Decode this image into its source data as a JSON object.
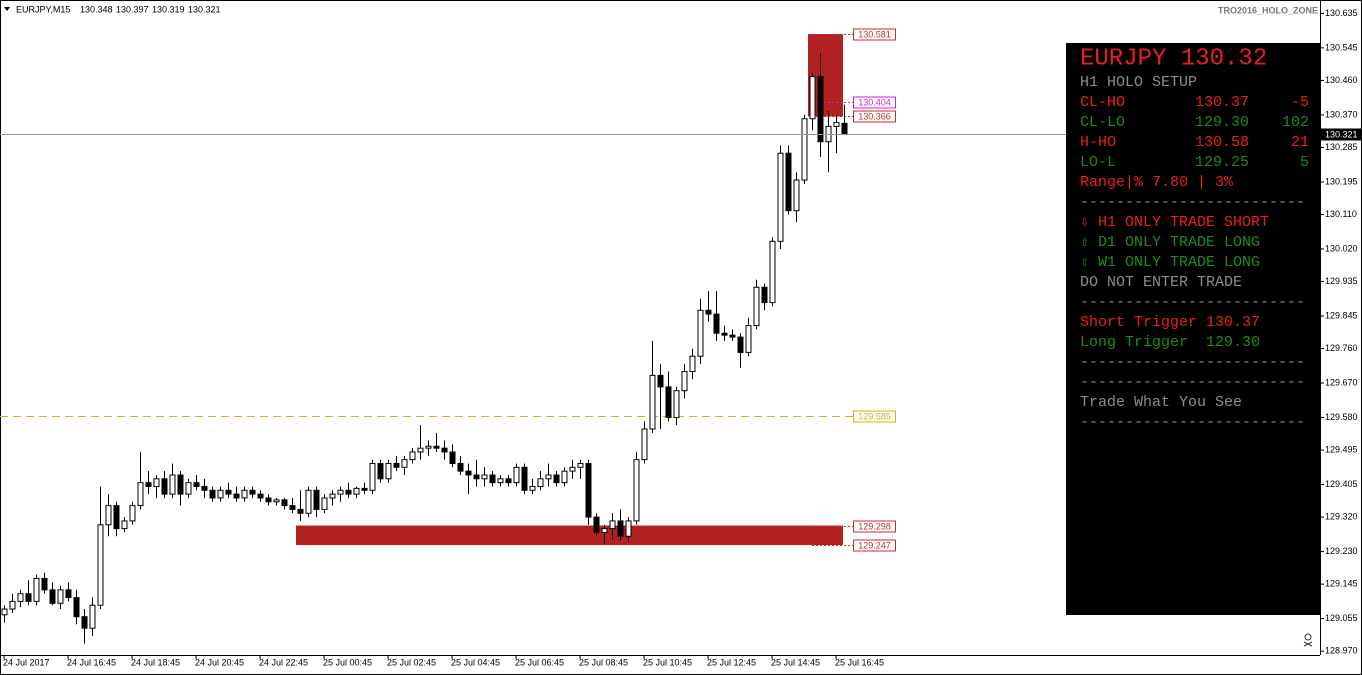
{
  "chart_data": {
    "type": "candlestick",
    "symbol": "EURJPY,M15",
    "indicator": "TRO2016_HOLO_ZONE",
    "categories": [
      "24 Jul 2017",
      null,
      null,
      null,
      null,
      null,
      null,
      null,
      "24 Jul 16:45",
      null,
      null,
      null,
      null,
      null,
      null,
      null,
      "24 Jul 18:45",
      null,
      null,
      null,
      null,
      null,
      null,
      null,
      "24 Jul 20:45",
      null,
      null,
      null,
      null,
      null,
      null,
      null,
      "24 Jul 22:45",
      null,
      null,
      null,
      null,
      null,
      null,
      null,
      "25 Jul 00:45",
      null,
      null,
      null,
      null,
      null,
      null,
      null,
      "25 Jul 02:45",
      null,
      null,
      null,
      null,
      null,
      null,
      null,
      "25 Jul 04:45",
      null,
      null,
      null,
      null,
      null,
      null,
      null,
      "25 Jul 06:45",
      null,
      null,
      null,
      null,
      null,
      null,
      null,
      "25 Jul 08:45",
      null,
      null,
      null,
      null,
      null,
      null,
      null,
      "25 Jul 10:45",
      null,
      null,
      null,
      null,
      null,
      null,
      null,
      "25 Jul 12:45",
      null,
      null,
      null,
      null,
      null,
      null,
      null,
      "25 Jul 14:45",
      null,
      null,
      null,
      null,
      null,
      null,
      null,
      "25 Jul 16:45",
      null
    ],
    "open": [
      129.065,
      129.08,
      129.1,
      129.12,
      129.1,
      129.16,
      129.13,
      129.095,
      129.13,
      129.11,
      129.06,
      129.03,
      129.09,
      129.3,
      129.35,
      129.29,
      129.31,
      129.35,
      129.41,
      129.4,
      129.42,
      129.38,
      129.43,
      129.38,
      129.41,
      129.4,
      129.39,
      129.37,
      129.39,
      129.38,
      129.37,
      129.39,
      129.38,
      129.37,
      129.36,
      129.365,
      129.35,
      129.34,
      129.33,
      129.39,
      129.34,
      129.37,
      129.38,
      129.39,
      129.38,
      129.395,
      129.39,
      129.46,
      129.42,
      129.46,
      129.45,
      129.47,
      129.49,
      129.5,
      129.505,
      129.5,
      129.49,
      129.46,
      129.44,
      129.43,
      129.42,
      129.43,
      129.41,
      129.42,
      129.41,
      129.45,
      129.39,
      129.4,
      129.42,
      129.43,
      129.41,
      129.44,
      129.45,
      129.46,
      129.32,
      129.28,
      129.29,
      129.31,
      129.27,
      129.31,
      129.47,
      129.55,
      129.69,
      129.66,
      129.58,
      129.65,
      129.7,
      129.74,
      129.86,
      129.85,
      129.8,
      129.795,
      129.79,
      129.75,
      129.82,
      129.92,
      129.88,
      130.04,
      130.27,
      130.12,
      130.2,
      130.36,
      130.47,
      130.3,
      130.34,
      130.348
    ],
    "high": [
      129.09,
      129.12,
      129.13,
      129.155,
      129.17,
      129.175,
      129.15,
      129.14,
      129.15,
      129.13,
      129.08,
      129.11,
      129.4,
      129.38,
      129.36,
      129.32,
      129.36,
      129.49,
      129.44,
      129.43,
      129.44,
      129.46,
      129.44,
      129.42,
      129.43,
      129.42,
      129.4,
      129.4,
      129.41,
      129.4,
      129.4,
      129.4,
      129.39,
      129.38,
      129.37,
      129.37,
      129.37,
      129.39,
      129.4,
      129.4,
      129.38,
      129.39,
      129.4,
      129.41,
      129.4,
      129.41,
      129.47,
      129.47,
      129.47,
      129.48,
      129.48,
      129.5,
      129.56,
      129.52,
      129.54,
      129.52,
      129.51,
      129.48,
      129.46,
      129.47,
      129.45,
      129.44,
      129.43,
      129.43,
      129.46,
      129.46,
      129.42,
      129.44,
      129.46,
      129.44,
      129.45,
      129.47,
      129.47,
      129.47,
      129.33,
      129.3,
      129.33,
      129.34,
      129.32,
      129.49,
      129.57,
      129.78,
      129.72,
      129.7,
      129.66,
      129.72,
      129.76,
      129.89,
      129.91,
      129.91,
      129.82,
      129.81,
      129.8,
      129.84,
      129.94,
      129.93,
      130.05,
      130.29,
      130.29,
      130.22,
      130.37,
      130.48,
      130.53,
      130.38,
      130.37,
      130.397
    ],
    "low": [
      129.045,
      129.07,
      129.085,
      129.09,
      129.09,
      129.12,
      129.09,
      129.08,
      129.1,
      129.04,
      128.99,
      129.01,
      129.08,
      129.27,
      129.27,
      129.28,
      129.3,
      129.34,
      129.38,
      129.37,
      129.37,
      129.37,
      129.35,
      129.37,
      129.39,
      129.37,
      129.36,
      129.36,
      129.37,
      129.36,
      129.36,
      129.37,
      129.36,
      129.35,
      129.35,
      129.34,
      129.33,
      129.31,
      129.32,
      129.32,
      129.33,
      129.35,
      129.36,
      129.37,
      129.37,
      129.38,
      129.38,
      129.41,
      129.41,
      129.44,
      129.43,
      129.46,
      129.47,
      129.48,
      129.49,
      129.47,
      129.45,
      129.43,
      129.38,
      129.4,
      129.4,
      129.4,
      129.4,
      129.4,
      129.4,
      129.38,
      129.38,
      129.39,
      129.4,
      129.4,
      129.4,
      129.42,
      129.42,
      129.3,
      129.27,
      129.25,
      129.26,
      129.26,
      129.255,
      129.3,
      129.46,
      129.54,
      129.55,
      129.57,
      129.56,
      129.63,
      129.68,
      129.72,
      129.83,
      129.78,
      129.78,
      129.78,
      129.71,
      129.74,
      129.81,
      129.86,
      129.87,
      130.02,
      130.11,
      130.09,
      130.19,
      130.33,
      130.26,
      130.22,
      130.27,
      130.319
    ],
    "close": [
      129.08,
      129.1,
      129.12,
      129.1,
      129.16,
      129.13,
      129.095,
      129.13,
      129.11,
      129.06,
      129.03,
      129.09,
      129.3,
      129.35,
      129.29,
      129.31,
      129.35,
      129.41,
      129.4,
      129.42,
      129.38,
      129.43,
      129.38,
      129.41,
      129.4,
      129.39,
      129.37,
      129.39,
      129.38,
      129.37,
      129.39,
      129.38,
      129.37,
      129.36,
      129.365,
      129.35,
      129.34,
      129.33,
      129.39,
      129.34,
      129.37,
      129.38,
      129.39,
      129.38,
      129.395,
      129.39,
      129.46,
      129.42,
      129.46,
      129.45,
      129.47,
      129.49,
      129.5,
      129.505,
      129.5,
      129.49,
      129.46,
      129.44,
      129.43,
      129.42,
      129.43,
      129.41,
      129.42,
      129.41,
      129.45,
      129.39,
      129.4,
      129.42,
      129.43,
      129.41,
      129.44,
      129.45,
      129.46,
      129.32,
      129.28,
      129.29,
      129.31,
      129.27,
      129.31,
      129.47,
      129.55,
      129.69,
      129.66,
      129.58,
      129.65,
      129.7,
      129.74,
      129.86,
      129.85,
      129.8,
      129.795,
      129.79,
      129.75,
      129.82,
      129.92,
      129.88,
      130.04,
      130.27,
      130.12,
      130.2,
      130.36,
      130.47,
      130.3,
      130.34,
      130.35,
      130.321
    ],
    "ylim": [
      128.96,
      130.67
    ],
    "yticks": [
      130.635,
      130.545,
      {
        "value": 130.46,
        "label": "130.460"
      },
      {
        "value": 130.37,
        "label": "130.370"
      },
      130.285,
      130.195,
      {
        "value": 130.11,
        "label": "130.110"
      },
      {
        "value": 130.02,
        "label": "130.020"
      },
      129.935,
      129.845,
      {
        "value": 129.76,
        "label": "129.760"
      },
      {
        "value": 129.67,
        "label": "129.670"
      },
      {
        "value": 129.58,
        "label": "129.580"
      },
      129.495,
      129.405,
      {
        "value": 129.32,
        "label": "129.320"
      },
      {
        "value": 129.23,
        "label": "129.230"
      },
      129.145,
      129.055,
      {
        "value": 128.97,
        "label": "128.970"
      }
    ],
    "levels": [
      {
        "value": 130.581,
        "color": "#c8282d"
      },
      {
        "value": 130.404,
        "color": "#d21fd2"
      },
      {
        "value": 130.366,
        "color": "#c8282d"
      },
      {
        "value": 129.585,
        "color": "#e6a817",
        "dashed": true
      },
      {
        "value": 129.298,
        "color": "#c8282d"
      },
      {
        "value": 129.247,
        "color": "#c8282d"
      }
    ],
    "zone_color": "#b22222"
  },
  "panel": {
    "title": "EURJPY 130.32",
    "subtitle": "H1 HOLO SETUP",
    "rows": [
      [
        "CL-HO",
        "130.37",
        "-5"
      ],
      [
        "CL-LO",
        "129.30",
        "102"
      ],
      [
        "H-HO",
        "130.58",
        "21"
      ],
      [
        "LO-L",
        "129.25",
        "5"
      ]
    ],
    "range": "Range|% 7.80 | 3%",
    "divider": "-------------------------",
    "signals": [
      "⇩ H1 ONLY TRADE SHORT",
      "⇧ D1 ONLY TRADE LONG",
      "⇧ W1 ONLY TRADE LONG"
    ],
    "advice": "DO NOT ENTER TRADE",
    "triggers": [
      "Short Trigger 130.37",
      "Long Trigger  129.30"
    ],
    "motto": "Trade What You See"
  }
}
